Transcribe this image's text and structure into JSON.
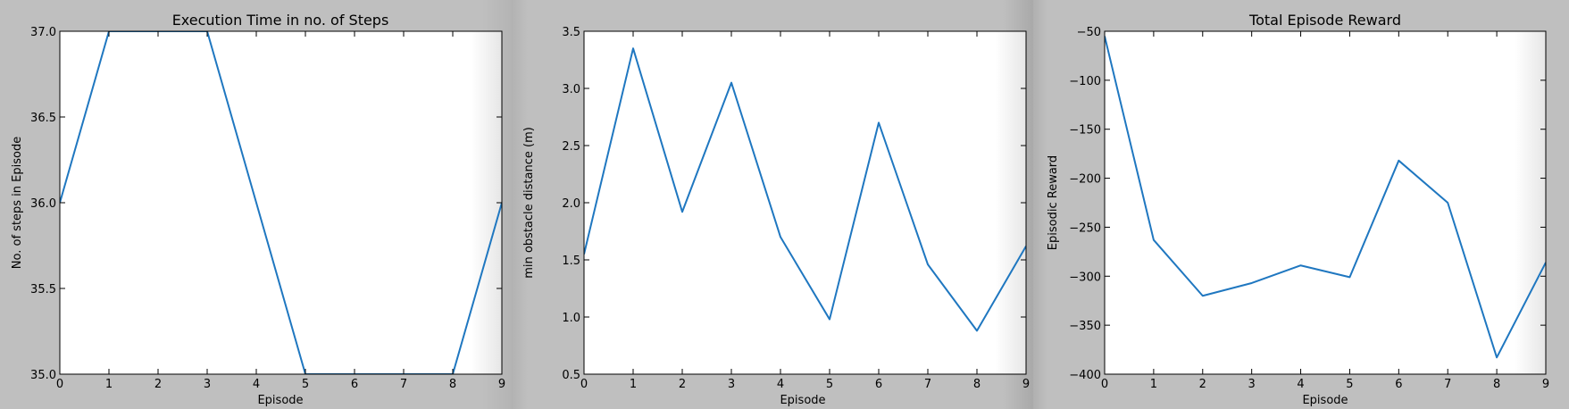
{
  "chart_data": [
    {
      "type": "line",
      "title": "Execution Time in no. of Steps",
      "xlabel": "Episode",
      "ylabel": "No. of steps in Episode",
      "x": [
        0,
        1,
        2,
        3,
        4,
        5,
        6,
        7,
        8,
        9
      ],
      "series": [
        {
          "values": [
            36,
            37,
            37,
            37,
            36,
            35,
            35,
            35,
            35,
            36
          ]
        }
      ],
      "xlim": [
        0,
        9
      ],
      "ylim": [
        35.0,
        37.0
      ],
      "xticks": [
        0,
        1,
        2,
        3,
        4,
        5,
        6,
        7,
        8,
        9
      ],
      "yticks": [
        35.0,
        35.5,
        36.0,
        36.5,
        37.0
      ],
      "ytick_labels": [
        "35.0",
        "35.5",
        "36.0",
        "36.5",
        "37.0"
      ],
      "grid": false,
      "line_color": "#1f77c0"
    },
    {
      "type": "line",
      "title": "",
      "xlabel": "Episode",
      "ylabel": "min obstacle distance (m)",
      "x": [
        0,
        1,
        2,
        3,
        4,
        5,
        6,
        7,
        8,
        9
      ],
      "series": [
        {
          "values": [
            1.55,
            3.35,
            1.92,
            3.05,
            1.7,
            0.98,
            2.7,
            1.46,
            0.88,
            1.62
          ]
        }
      ],
      "xlim": [
        0,
        9
      ],
      "ylim": [
        0.5,
        3.5
      ],
      "xticks": [
        0,
        1,
        2,
        3,
        4,
        5,
        6,
        7,
        8,
        9
      ],
      "yticks": [
        0.5,
        1.0,
        1.5,
        2.0,
        2.5,
        3.0,
        3.5
      ],
      "ytick_labels": [
        "0.5",
        "1.0",
        "1.5",
        "2.0",
        "2.5",
        "3.0",
        "3.5"
      ],
      "grid": false,
      "line_color": "#1f77c0"
    },
    {
      "type": "line",
      "title": "Total Episode Reward",
      "xlabel": "Episode",
      "ylabel": "Episodic Reward",
      "x": [
        0,
        1,
        2,
        3,
        4,
        5,
        6,
        7,
        8,
        9
      ],
      "series": [
        {
          "values": [
            -55,
            -263,
            -320,
            -307,
            -289,
            -301,
            -182,
            -225,
            -383,
            -286
          ]
        }
      ],
      "xlim": [
        0,
        9
      ],
      "ylim": [
        -400,
        -50
      ],
      "xticks": [
        0,
        1,
        2,
        3,
        4,
        5,
        6,
        7,
        8,
        9
      ],
      "yticks": [
        -400,
        -350,
        -300,
        -250,
        -200,
        -150,
        -100,
        -50
      ],
      "ytick_labels": [
        "−400",
        "−350",
        "−300",
        "−250",
        "−200",
        "−150",
        "−100",
        "−50"
      ],
      "grid": false,
      "line_color": "#1f77c0"
    }
  ]
}
